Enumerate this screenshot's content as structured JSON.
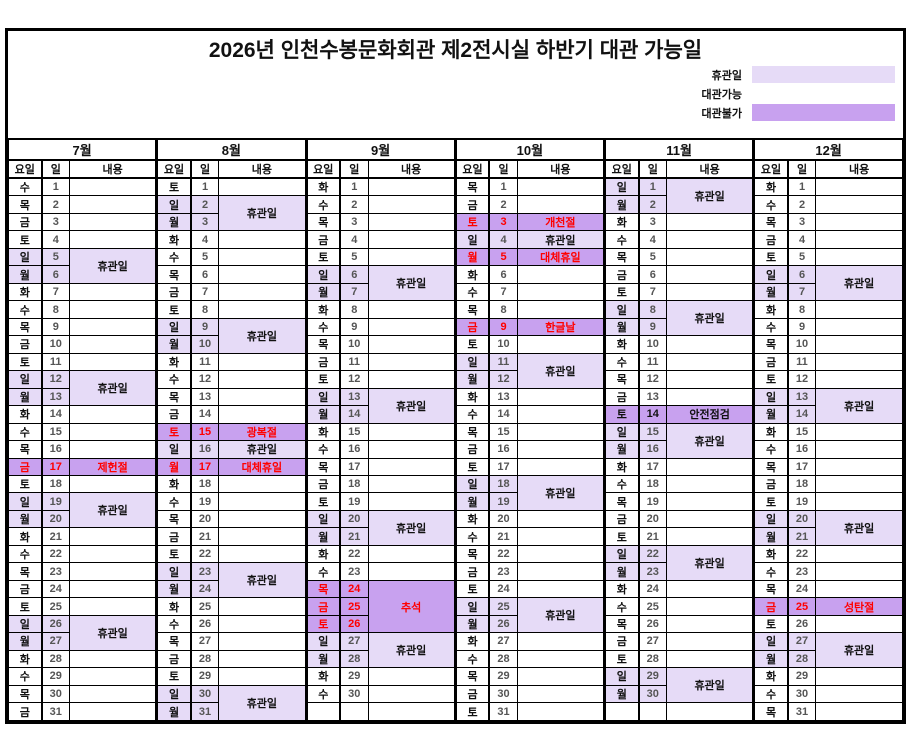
{
  "title": "2026년 인천수봉문화회관 제2전시실 하반기 대관 가능일",
  "colors": {
    "closed_bg": "#E6DBF7",
    "blocked_bg": "#C8A1EF",
    "holiday_text": "#FF0000"
  },
  "legend": [
    {
      "label": "휴관일",
      "color": "#E6DBF7"
    },
    {
      "label": "대관가능",
      "color": "#FFFFFF"
    },
    {
      "label": "대관불가",
      "color": "#C8A1EF"
    }
  ],
  "columns": {
    "day": "요일",
    "date": "일",
    "content": "내용"
  },
  "months": [
    {
      "name": "7월",
      "days": [
        {
          "w": "수",
          "d": "1"
        },
        {
          "w": "목",
          "d": "2"
        },
        {
          "w": "금",
          "d": "3"
        },
        {
          "w": "토",
          "d": "4"
        },
        {
          "w": "일",
          "d": "5",
          "t": "c",
          "m": {
            "label": "휴관일",
            "span": 2,
            "s": "c"
          }
        },
        {
          "w": "월",
          "d": "6",
          "t": "c",
          "x": true
        },
        {
          "w": "화",
          "d": "7"
        },
        {
          "w": "수",
          "d": "8"
        },
        {
          "w": "목",
          "d": "9"
        },
        {
          "w": "금",
          "d": "10"
        },
        {
          "w": "토",
          "d": "11"
        },
        {
          "w": "일",
          "d": "12",
          "t": "c",
          "m": {
            "label": "휴관일",
            "span": 2,
            "s": "c"
          }
        },
        {
          "w": "월",
          "d": "13",
          "t": "c",
          "x": true
        },
        {
          "w": "화",
          "d": "14"
        },
        {
          "w": "수",
          "d": "15"
        },
        {
          "w": "목",
          "d": "16"
        },
        {
          "w": "금",
          "d": "17",
          "t": "h",
          "m": {
            "label": "제헌절",
            "span": 1,
            "s": "h"
          }
        },
        {
          "w": "토",
          "d": "18"
        },
        {
          "w": "일",
          "d": "19",
          "t": "c",
          "m": {
            "label": "휴관일",
            "span": 2,
            "s": "c"
          }
        },
        {
          "w": "월",
          "d": "20",
          "t": "c",
          "x": true
        },
        {
          "w": "화",
          "d": "21"
        },
        {
          "w": "수",
          "d": "22"
        },
        {
          "w": "목",
          "d": "23"
        },
        {
          "w": "금",
          "d": "24"
        },
        {
          "w": "토",
          "d": "25"
        },
        {
          "w": "일",
          "d": "26",
          "t": "c",
          "m": {
            "label": "휴관일",
            "span": 2,
            "s": "c"
          }
        },
        {
          "w": "월",
          "d": "27",
          "t": "c",
          "x": true
        },
        {
          "w": "화",
          "d": "28"
        },
        {
          "w": "수",
          "d": "29"
        },
        {
          "w": "목",
          "d": "30"
        },
        {
          "w": "금",
          "d": "31"
        }
      ]
    },
    {
      "name": "8월",
      "days": [
        {
          "w": "토",
          "d": "1"
        },
        {
          "w": "일",
          "d": "2",
          "t": "c",
          "m": {
            "label": "휴관일",
            "span": 2,
            "s": "c"
          }
        },
        {
          "w": "월",
          "d": "3",
          "t": "c",
          "x": true
        },
        {
          "w": "화",
          "d": "4"
        },
        {
          "w": "수",
          "d": "5"
        },
        {
          "w": "목",
          "d": "6"
        },
        {
          "w": "금",
          "d": "7"
        },
        {
          "w": "토",
          "d": "8"
        },
        {
          "w": "일",
          "d": "9",
          "t": "c",
          "m": {
            "label": "휴관일",
            "span": 2,
            "s": "c"
          }
        },
        {
          "w": "월",
          "d": "10",
          "t": "c",
          "x": true
        },
        {
          "w": "화",
          "d": "11"
        },
        {
          "w": "수",
          "d": "12"
        },
        {
          "w": "목",
          "d": "13"
        },
        {
          "w": "금",
          "d": "14"
        },
        {
          "w": "토",
          "d": "15",
          "t": "h",
          "m": {
            "label": "광복절",
            "span": 1,
            "s": "h"
          }
        },
        {
          "w": "일",
          "d": "16",
          "t": "c",
          "m": {
            "label": "휴관일",
            "span": 1,
            "s": "c"
          }
        },
        {
          "w": "월",
          "d": "17",
          "t": "h",
          "m": {
            "label": "대체휴일",
            "span": 1,
            "s": "h"
          }
        },
        {
          "w": "화",
          "d": "18"
        },
        {
          "w": "수",
          "d": "19"
        },
        {
          "w": "목",
          "d": "20"
        },
        {
          "w": "금",
          "d": "21"
        },
        {
          "w": "토",
          "d": "22"
        },
        {
          "w": "일",
          "d": "23",
          "t": "c",
          "m": {
            "label": "휴관일",
            "span": 2,
            "s": "c"
          }
        },
        {
          "w": "월",
          "d": "24",
          "t": "c",
          "x": true
        },
        {
          "w": "화",
          "d": "25"
        },
        {
          "w": "수",
          "d": "26"
        },
        {
          "w": "목",
          "d": "27"
        },
        {
          "w": "금",
          "d": "28"
        },
        {
          "w": "토",
          "d": "29"
        },
        {
          "w": "일",
          "d": "30",
          "t": "c",
          "m": {
            "label": "휴관일",
            "span": 2,
            "s": "c"
          }
        },
        {
          "w": "월",
          "d": "31",
          "t": "c",
          "x": true
        }
      ]
    },
    {
      "name": "9월",
      "days": [
        {
          "w": "화",
          "d": "1"
        },
        {
          "w": "수",
          "d": "2"
        },
        {
          "w": "목",
          "d": "3"
        },
        {
          "w": "금",
          "d": "4"
        },
        {
          "w": "토",
          "d": "5"
        },
        {
          "w": "일",
          "d": "6",
          "t": "c",
          "m": {
            "label": "휴관일",
            "span": 2,
            "s": "c"
          }
        },
        {
          "w": "월",
          "d": "7",
          "t": "c",
          "x": true
        },
        {
          "w": "화",
          "d": "8"
        },
        {
          "w": "수",
          "d": "9"
        },
        {
          "w": "목",
          "d": "10"
        },
        {
          "w": "금",
          "d": "11"
        },
        {
          "w": "토",
          "d": "12"
        },
        {
          "w": "일",
          "d": "13",
          "t": "c",
          "m": {
            "label": "휴관일",
            "span": 2,
            "s": "c"
          }
        },
        {
          "w": "월",
          "d": "14",
          "t": "c",
          "x": true
        },
        {
          "w": "화",
          "d": "15"
        },
        {
          "w": "수",
          "d": "16"
        },
        {
          "w": "목",
          "d": "17"
        },
        {
          "w": "금",
          "d": "18"
        },
        {
          "w": "토",
          "d": "19"
        },
        {
          "w": "일",
          "d": "20",
          "t": "c",
          "m": {
            "label": "휴관일",
            "span": 2,
            "s": "c"
          }
        },
        {
          "w": "월",
          "d": "21",
          "t": "c",
          "x": true
        },
        {
          "w": "화",
          "d": "22"
        },
        {
          "w": "수",
          "d": "23"
        },
        {
          "w": "목",
          "d": "24",
          "t": "h",
          "m": {
            "label": "추석",
            "span": 3,
            "s": "h"
          }
        },
        {
          "w": "금",
          "d": "25",
          "t": "h",
          "x": true
        },
        {
          "w": "토",
          "d": "26",
          "t": "h",
          "x": true
        },
        {
          "w": "일",
          "d": "27",
          "t": "c",
          "m": {
            "label": "휴관일",
            "span": 2,
            "s": "c"
          }
        },
        {
          "w": "월",
          "d": "28",
          "t": "c",
          "x": true
        },
        {
          "w": "화",
          "d": "29"
        },
        {
          "w": "수",
          "d": "30"
        },
        {
          "w": "",
          "d": ""
        }
      ]
    },
    {
      "name": "10월",
      "days": [
        {
          "w": "목",
          "d": "1"
        },
        {
          "w": "금",
          "d": "2"
        },
        {
          "w": "토",
          "d": "3",
          "t": "h",
          "m": {
            "label": "개천절",
            "span": 1,
            "s": "h"
          }
        },
        {
          "w": "일",
          "d": "4",
          "t": "c",
          "m": {
            "label": "휴관일",
            "span": 1,
            "s": "c"
          }
        },
        {
          "w": "월",
          "d": "5",
          "t": "h",
          "m": {
            "label": "대체휴일",
            "span": 1,
            "s": "h"
          }
        },
        {
          "w": "화",
          "d": "6"
        },
        {
          "w": "수",
          "d": "7"
        },
        {
          "w": "목",
          "d": "8"
        },
        {
          "w": "금",
          "d": "9",
          "t": "h",
          "m": {
            "label": "한글날",
            "span": 1,
            "s": "h"
          }
        },
        {
          "w": "토",
          "d": "10"
        },
        {
          "w": "일",
          "d": "11",
          "t": "c",
          "m": {
            "label": "휴관일",
            "span": 2,
            "s": "c"
          }
        },
        {
          "w": "월",
          "d": "12",
          "t": "c",
          "x": true
        },
        {
          "w": "화",
          "d": "13"
        },
        {
          "w": "수",
          "d": "14"
        },
        {
          "w": "목",
          "d": "15"
        },
        {
          "w": "금",
          "d": "16"
        },
        {
          "w": "토",
          "d": "17"
        },
        {
          "w": "일",
          "d": "18",
          "t": "c",
          "m": {
            "label": "휴관일",
            "span": 2,
            "s": "c"
          }
        },
        {
          "w": "월",
          "d": "19",
          "t": "c",
          "x": true
        },
        {
          "w": "화",
          "d": "20"
        },
        {
          "w": "수",
          "d": "21"
        },
        {
          "w": "목",
          "d": "22"
        },
        {
          "w": "금",
          "d": "23"
        },
        {
          "w": "토",
          "d": "24"
        },
        {
          "w": "일",
          "d": "25",
          "t": "c",
          "m": {
            "label": "휴관일",
            "span": 2,
            "s": "c"
          }
        },
        {
          "w": "월",
          "d": "26",
          "t": "c",
          "x": true
        },
        {
          "w": "화",
          "d": "27"
        },
        {
          "w": "수",
          "d": "28"
        },
        {
          "w": "목",
          "d": "29"
        },
        {
          "w": "금",
          "d": "30"
        },
        {
          "w": "토",
          "d": "31"
        }
      ]
    },
    {
      "name": "11월",
      "days": [
        {
          "w": "일",
          "d": "1",
          "t": "c",
          "m": {
            "label": "휴관일",
            "span": 2,
            "s": "c"
          }
        },
        {
          "w": "월",
          "d": "2",
          "t": "c",
          "x": true
        },
        {
          "w": "화",
          "d": "3"
        },
        {
          "w": "수",
          "d": "4"
        },
        {
          "w": "목",
          "d": "5"
        },
        {
          "w": "금",
          "d": "6"
        },
        {
          "w": "토",
          "d": "7"
        },
        {
          "w": "일",
          "d": "8",
          "t": "c",
          "m": {
            "label": "휴관일",
            "span": 2,
            "s": "c"
          }
        },
        {
          "w": "월",
          "d": "9",
          "t": "c",
          "x": true
        },
        {
          "w": "화",
          "d": "10"
        },
        {
          "w": "수",
          "d": "11"
        },
        {
          "w": "목",
          "d": "12"
        },
        {
          "w": "금",
          "d": "13"
        },
        {
          "w": "토",
          "d": "14",
          "t": "i",
          "m": {
            "label": "안전점검",
            "span": 1,
            "s": "i"
          }
        },
        {
          "w": "일",
          "d": "15",
          "t": "c",
          "m": {
            "label": "휴관일",
            "span": 2,
            "s": "c"
          }
        },
        {
          "w": "월",
          "d": "16",
          "t": "c",
          "x": true
        },
        {
          "w": "화",
          "d": "17"
        },
        {
          "w": "수",
          "d": "18"
        },
        {
          "w": "목",
          "d": "19"
        },
        {
          "w": "금",
          "d": "20"
        },
        {
          "w": "토",
          "d": "21"
        },
        {
          "w": "일",
          "d": "22",
          "t": "c",
          "m": {
            "label": "휴관일",
            "span": 2,
            "s": "c"
          }
        },
        {
          "w": "월",
          "d": "23",
          "t": "c",
          "x": true
        },
        {
          "w": "화",
          "d": "24"
        },
        {
          "w": "수",
          "d": "25"
        },
        {
          "w": "목",
          "d": "26"
        },
        {
          "w": "금",
          "d": "27"
        },
        {
          "w": "토",
          "d": "28"
        },
        {
          "w": "일",
          "d": "29",
          "t": "c",
          "m": {
            "label": "휴관일",
            "span": 2,
            "s": "c"
          }
        },
        {
          "w": "월",
          "d": "30",
          "t": "c",
          "x": true
        },
        {
          "w": "",
          "d": ""
        }
      ]
    },
    {
      "name": "12월",
      "days": [
        {
          "w": "화",
          "d": "1"
        },
        {
          "w": "수",
          "d": "2"
        },
        {
          "w": "목",
          "d": "3"
        },
        {
          "w": "금",
          "d": "4"
        },
        {
          "w": "토",
          "d": "5"
        },
        {
          "w": "일",
          "d": "6",
          "t": "c",
          "m": {
            "label": "휴관일",
            "span": 2,
            "s": "c"
          }
        },
        {
          "w": "월",
          "d": "7",
          "t": "c",
          "x": true
        },
        {
          "w": "화",
          "d": "8"
        },
        {
          "w": "수",
          "d": "9"
        },
        {
          "w": "목",
          "d": "10"
        },
        {
          "w": "금",
          "d": "11"
        },
        {
          "w": "토",
          "d": "12"
        },
        {
          "w": "일",
          "d": "13",
          "t": "c",
          "m": {
            "label": "휴관일",
            "span": 2,
            "s": "c"
          }
        },
        {
          "w": "월",
          "d": "14",
          "t": "c",
          "x": true
        },
        {
          "w": "화",
          "d": "15"
        },
        {
          "w": "수",
          "d": "16"
        },
        {
          "w": "목",
          "d": "17"
        },
        {
          "w": "금",
          "d": "18"
        },
        {
          "w": "토",
          "d": "19"
        },
        {
          "w": "일",
          "d": "20",
          "t": "c",
          "m": {
            "label": "휴관일",
            "span": 2,
            "s": "c"
          }
        },
        {
          "w": "월",
          "d": "21",
          "t": "c",
          "x": true
        },
        {
          "w": "화",
          "d": "22"
        },
        {
          "w": "수",
          "d": "23"
        },
        {
          "w": "목",
          "d": "24"
        },
        {
          "w": "금",
          "d": "25",
          "t": "h",
          "m": {
            "label": "성탄절",
            "span": 1,
            "s": "h"
          }
        },
        {
          "w": "토",
          "d": "26"
        },
        {
          "w": "일",
          "d": "27",
          "t": "c",
          "m": {
            "label": "휴관일",
            "span": 2,
            "s": "c"
          }
        },
        {
          "w": "월",
          "d": "28",
          "t": "c",
          "x": true
        },
        {
          "w": "화",
          "d": "29"
        },
        {
          "w": "수",
          "d": "30"
        },
        {
          "w": "목",
          "d": "31"
        }
      ]
    }
  ]
}
